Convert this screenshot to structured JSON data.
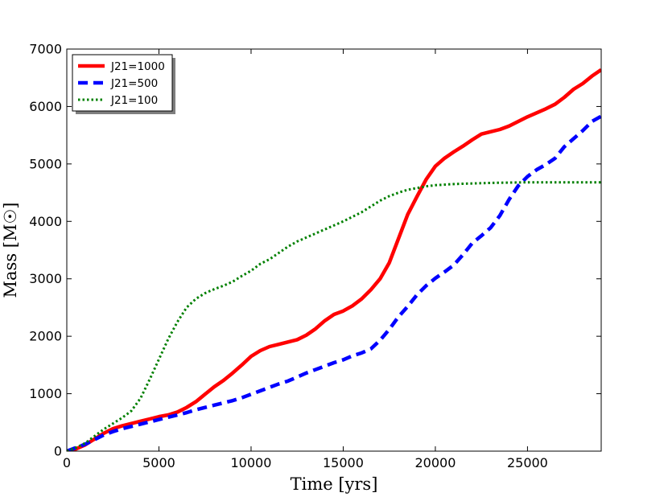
{
  "chart_data": {
    "type": "line",
    "xlabel": "Time [yrs]",
    "ylabel": "Mass [M☉]",
    "xlim": [
      0,
      29000
    ],
    "ylim": [
      0,
      7000
    ],
    "xticks": [
      0,
      5000,
      10000,
      15000,
      20000,
      25000
    ],
    "yticks": [
      0,
      1000,
      2000,
      3000,
      4000,
      5000,
      6000,
      7000
    ],
    "grid": false,
    "legend_position": "top-left",
    "series": [
      {
        "name": "J21=1000",
        "color": "#ff0000",
        "style": "solid",
        "x": [
          0,
          500,
          1000,
          1500,
          2000,
          2500,
          3000,
          3500,
          4000,
          4500,
          5000,
          5500,
          6000,
          6500,
          7000,
          7500,
          8000,
          8500,
          9000,
          9500,
          10000,
          10500,
          11000,
          11500,
          12000,
          12500,
          13000,
          13500,
          14000,
          14500,
          15000,
          15500,
          16000,
          16500,
          17000,
          17500,
          18000,
          18500,
          19000,
          19500,
          20000,
          20500,
          21000,
          21500,
          22000,
          22500,
          23000,
          23500,
          24000,
          24500,
          25000,
          25500,
          26000,
          26500,
          27000,
          27500,
          28000,
          28500,
          29000
        ],
        "y": [
          0,
          40,
          110,
          210,
          310,
          390,
          440,
          480,
          520,
          560,
          600,
          630,
          680,
          760,
          860,
          990,
          1120,
          1230,
          1360,
          1500,
          1650,
          1750,
          1820,
          1860,
          1900,
          1940,
          2020,
          2130,
          2270,
          2380,
          2440,
          2530,
          2650,
          2810,
          3000,
          3280,
          3700,
          4120,
          4430,
          4730,
          4960,
          5100,
          5210,
          5310,
          5420,
          5520,
          5560,
          5600,
          5660,
          5740,
          5820,
          5890,
          5960,
          6040,
          6160,
          6300,
          6400,
          6530,
          6640
        ]
      },
      {
        "name": "J21=500",
        "color": "#0000ff",
        "style": "dashed",
        "x": [
          0,
          500,
          1000,
          1500,
          2000,
          2500,
          3000,
          3500,
          4000,
          4500,
          5000,
          5500,
          6000,
          6500,
          7000,
          7500,
          8000,
          8500,
          9000,
          9500,
          10000,
          10500,
          11000,
          11500,
          12000,
          12500,
          13000,
          13500,
          14000,
          14500,
          15000,
          15500,
          16000,
          16500,
          17000,
          17500,
          18000,
          18500,
          19000,
          19500,
          20000,
          20500,
          21000,
          21500,
          22000,
          22500,
          23000,
          23500,
          24000,
          24500,
          25000,
          25500,
          26000,
          26500,
          27000,
          27500,
          28000,
          28500,
          29000
        ],
        "y": [
          0,
          60,
          120,
          200,
          280,
          340,
          390,
          430,
          470,
          510,
          550,
          590,
          630,
          670,
          720,
          760,
          800,
          840,
          880,
          930,
          990,
          1050,
          1110,
          1170,
          1220,
          1290,
          1360,
          1420,
          1480,
          1540,
          1590,
          1660,
          1710,
          1780,
          1930,
          2120,
          2340,
          2520,
          2720,
          2880,
          3010,
          3120,
          3240,
          3420,
          3620,
          3750,
          3890,
          4100,
          4380,
          4620,
          4780,
          4900,
          4990,
          5100,
          5300,
          5440,
          5580,
          5740,
          5830
        ]
      },
      {
        "name": "J21=100",
        "color": "#008000",
        "style": "dotted",
        "x": [
          0,
          500,
          1000,
          1500,
          2000,
          2500,
          3000,
          3500,
          4000,
          4500,
          5000,
          5500,
          6000,
          6500,
          7000,
          7500,
          8000,
          8500,
          9000,
          9500,
          10000,
          10500,
          11000,
          11500,
          12000,
          12500,
          13000,
          13500,
          14000,
          14500,
          15000,
          15500,
          16000,
          16500,
          17000,
          17500,
          18000,
          18500,
          19000,
          19500,
          20000,
          20500,
          21000,
          22000,
          23000,
          24000,
          25000,
          26000,
          27000,
          28000,
          29000
        ],
        "y": [
          0,
          60,
          140,
          260,
          380,
          480,
          580,
          700,
          920,
          1250,
          1600,
          1950,
          2250,
          2500,
          2650,
          2750,
          2820,
          2880,
          2950,
          3050,
          3140,
          3260,
          3340,
          3450,
          3560,
          3650,
          3720,
          3790,
          3860,
          3930,
          4000,
          4080,
          4160,
          4260,
          4360,
          4440,
          4500,
          4550,
          4580,
          4610,
          4630,
          4640,
          4650,
          4660,
          4670,
          4675,
          4680,
          4680,
          4680,
          4680,
          4680
        ]
      }
    ]
  }
}
